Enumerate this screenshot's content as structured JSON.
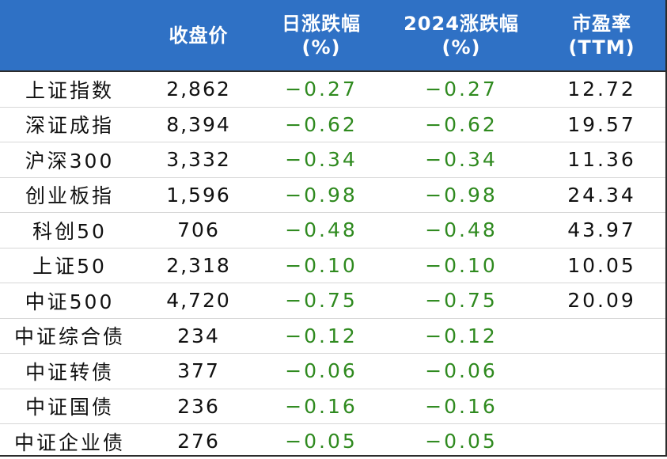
{
  "chart_data": {
    "type": "table",
    "columns": [
      "",
      "收盘价",
      "日涨跌幅 (%)",
      "2024涨跌幅 (%)",
      "市盈率 (TTM)"
    ],
    "header": {
      "col0": "",
      "col1": "收盘价",
      "col2_line1": "日涨跌幅",
      "col2_line2": "(%)",
      "col3_line1": "2024涨跌幅",
      "col3_line2": "(%)",
      "col4_line1": "市盈率",
      "col4_line2": "(TTM)"
    },
    "rows": [
      {
        "name": "上证指数",
        "close": "2,862",
        "daily": "−0.27",
        "ytd": "−0.27",
        "pe": "12.72"
      },
      {
        "name": "深证成指",
        "close": "8,394",
        "daily": "−0.62",
        "ytd": "−0.62",
        "pe": "19.57"
      },
      {
        "name": "沪深300",
        "close": "3,332",
        "daily": "−0.34",
        "ytd": "−0.34",
        "pe": "11.36"
      },
      {
        "name": "创业板指",
        "close": "1,596",
        "daily": "−0.98",
        "ytd": "−0.98",
        "pe": "24.34"
      },
      {
        "name": "科创50",
        "close": "706",
        "daily": "−0.48",
        "ytd": "−0.48",
        "pe": "43.97"
      },
      {
        "name": "上证50",
        "close": "2,318",
        "daily": "−0.10",
        "ytd": "−0.10",
        "pe": "10.05"
      },
      {
        "name": "中证500",
        "close": "4,720",
        "daily": "−0.75",
        "ytd": "−0.75",
        "pe": "20.09"
      },
      {
        "name": "中证综合债",
        "close": "234",
        "daily": "−0.12",
        "ytd": "−0.12",
        "pe": ""
      },
      {
        "name": "中证转债",
        "close": "377",
        "daily": "−0.06",
        "ytd": "−0.06",
        "pe": ""
      },
      {
        "name": "中证国债",
        "close": "236",
        "daily": "−0.16",
        "ytd": "−0.16",
        "pe": ""
      },
      {
        "name": "中证企业债",
        "close": "276",
        "daily": "−0.05",
        "ytd": "−0.05",
        "pe": ""
      }
    ]
  },
  "colors": {
    "header_bg": "#2f71c5",
    "header_text": "#ffffff",
    "negative_text": "#2f8a1f",
    "body_text": "#111111"
  }
}
